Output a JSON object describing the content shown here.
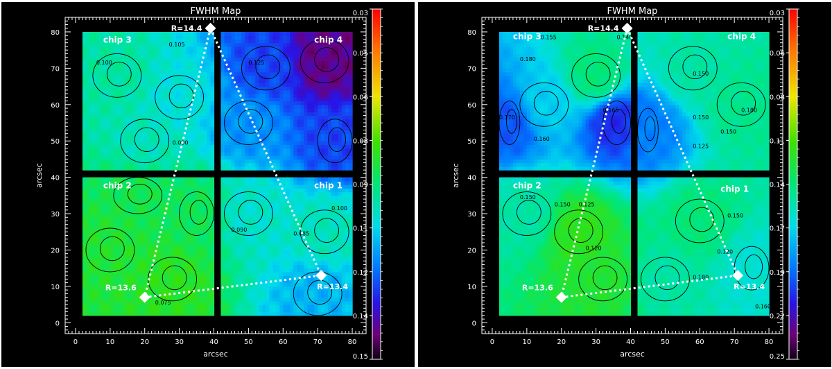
{
  "chart_data": [
    {
      "type": "heatmap",
      "title": "FWHM Map",
      "xlabel": "arcsec",
      "ylabel": "arcsec",
      "xlim": [
        -3,
        84
      ],
      "ylim": [
        -3,
        84
      ],
      "xticks": [
        0,
        10,
        20,
        30,
        40,
        50,
        60,
        70,
        80
      ],
      "yticks": [
        0,
        10,
        20,
        30,
        40,
        50,
        60,
        70,
        80
      ],
      "chips": [
        {
          "label": "chip 1",
          "x_range": [
            42,
            80
          ],
          "y_range": [
            2,
            40
          ],
          "label_pos": [
            69,
            37
          ]
        },
        {
          "label": "chip 2",
          "x_range": [
            2,
            40
          ],
          "y_range": [
            2,
            40
          ],
          "label_pos": [
            8,
            37
          ]
        },
        {
          "label": "chip 3",
          "x_range": [
            2,
            40
          ],
          "y_range": [
            42,
            80
          ],
          "label_pos": [
            8,
            77
          ]
        },
        {
          "label": "chip 4",
          "x_range": [
            42,
            80
          ],
          "y_range": [
            42,
            80
          ],
          "label_pos": [
            69,
            77
          ]
        }
      ],
      "field_centers": [
        {
          "x": 18,
          "y": 35,
          "value": 0.085
        },
        {
          "x": 10,
          "y": 20,
          "value": 0.082
        },
        {
          "x": 28,
          "y": 12,
          "value": 0.08
        },
        {
          "x": 35,
          "y": 30,
          "value": 0.086
        },
        {
          "x": 12,
          "y": 68,
          "value": 0.095
        },
        {
          "x": 30,
          "y": 62,
          "value": 0.102
        },
        {
          "x": 20,
          "y": 50,
          "value": 0.098
        },
        {
          "x": 55,
          "y": 70,
          "value": 0.125
        },
        {
          "x": 72,
          "y": 72,
          "value": 0.14
        },
        {
          "x": 50,
          "y": 55,
          "value": 0.115
        },
        {
          "x": 75,
          "y": 50,
          "value": 0.125
        },
        {
          "x": 50,
          "y": 30,
          "value": 0.1
        },
        {
          "x": 72,
          "y": 25,
          "value": 0.098
        },
        {
          "x": 70,
          "y": 8,
          "value": 0.11
        }
      ],
      "contour_labels": [
        {
          "text": "0.100",
          "x": 6,
          "y": 71
        },
        {
          "text": "0.105",
          "x": 27,
          "y": 76
        },
        {
          "text": "0.125",
          "x": 50,
          "y": 71
        },
        {
          "text": "0.090",
          "x": 28,
          "y": 49
        },
        {
          "text": "0.090",
          "x": 45,
          "y": 25
        },
        {
          "text": "0.085",
          "x": 63,
          "y": 24
        },
        {
          "text": "0.100",
          "x": 74,
          "y": 31
        },
        {
          "text": "0.075",
          "x": 23,
          "y": 5
        }
      ],
      "points": [
        {
          "label": "R=14.4",
          "x": 39,
          "y": 81,
          "label_side": "left"
        },
        {
          "label": "R=13.4",
          "x": 71,
          "y": 13,
          "label_side": "below-right"
        },
        {
          "label": "R=13.6",
          "x": 20,
          "y": 7,
          "label_side": "above-left"
        }
      ],
      "colorbar": {
        "min": 0.03,
        "max": 0.15,
        "reversed": true,
        "tick_labels": [
          "0.03",
          "0.05",
          "0.06",
          "0.08",
          "0.09",
          "0.11",
          "0.12",
          "0.14",
          "0.15"
        ]
      }
    },
    {
      "type": "heatmap",
      "title": "FWHM Map",
      "xlabel": "arcsec",
      "ylabel": "arcsec",
      "xlim": [
        -3,
        84
      ],
      "ylim": [
        -3,
        84
      ],
      "xticks": [
        0,
        10,
        20,
        30,
        40,
        50,
        60,
        70,
        80
      ],
      "yticks": [
        0,
        10,
        20,
        30,
        40,
        50,
        60,
        70,
        80
      ],
      "chips": [
        {
          "label": "chip 1",
          "x_range": [
            42,
            80
          ],
          "y_range": [
            2,
            40
          ],
          "label_pos": [
            66,
            36
          ]
        },
        {
          "label": "chip 2",
          "x_range": [
            2,
            40
          ],
          "y_range": [
            2,
            40
          ],
          "label_pos": [
            6,
            37
          ]
        },
        {
          "label": "chip 3",
          "x_range": [
            2,
            40
          ],
          "y_range": [
            42,
            80
          ],
          "label_pos": [
            6,
            78
          ]
        },
        {
          "label": "chip 4",
          "x_range": [
            42,
            80
          ],
          "y_range": [
            42,
            80
          ],
          "label_pos": [
            68,
            78
          ]
        }
      ],
      "field_centers": [
        {
          "x": 25,
          "y": 25,
          "value": 0.12
        },
        {
          "x": 10,
          "y": 30,
          "value": 0.15
        },
        {
          "x": 32,
          "y": 12,
          "value": 0.125
        },
        {
          "x": 15,
          "y": 60,
          "value": 0.17
        },
        {
          "x": 5,
          "y": 55,
          "value": 0.2
        },
        {
          "x": 30,
          "y": 68,
          "value": 0.14
        },
        {
          "x": 36,
          "y": 55,
          "value": 0.21
        },
        {
          "x": 58,
          "y": 70,
          "value": 0.15
        },
        {
          "x": 72,
          "y": 60,
          "value": 0.145
        },
        {
          "x": 45,
          "y": 53,
          "value": 0.19
        },
        {
          "x": 60,
          "y": 28,
          "value": 0.14
        },
        {
          "x": 75,
          "y": 15,
          "value": 0.16
        },
        {
          "x": 50,
          "y": 12,
          "value": 0.15
        }
      ],
      "contour_labels": [
        {
          "text": "0.155",
          "x": 14,
          "y": 78
        },
        {
          "text": "0.180",
          "x": 8,
          "y": 72
        },
        {
          "text": "0.170",
          "x": 2,
          "y": 56
        },
        {
          "text": "0.160",
          "x": 12,
          "y": 50
        },
        {
          "text": "0.165",
          "x": 32,
          "y": 58
        },
        {
          "text": "0.140",
          "x": 36,
          "y": 78
        },
        {
          "text": "0.150",
          "x": 58,
          "y": 68
        },
        {
          "text": "0.180",
          "x": 72,
          "y": 58
        },
        {
          "text": "0.150",
          "x": 58,
          "y": 56
        },
        {
          "text": "0.150",
          "x": 66,
          "y": 52
        },
        {
          "text": "0.125",
          "x": 58,
          "y": 48
        },
        {
          "text": "0.150",
          "x": 8,
          "y": 34
        },
        {
          "text": "0.150",
          "x": 18,
          "y": 32
        },
        {
          "text": "0.125",
          "x": 25,
          "y": 32
        },
        {
          "text": "0.120",
          "x": 27,
          "y": 20
        },
        {
          "text": "0.180",
          "x": 58,
          "y": 12
        },
        {
          "text": "0.120",
          "x": 65,
          "y": 19
        },
        {
          "text": "0.150",
          "x": 68,
          "y": 29
        },
        {
          "text": "0.160",
          "x": 76,
          "y": 4
        }
      ],
      "points": [
        {
          "label": "R=14.4",
          "x": 39,
          "y": 81,
          "label_side": "left"
        },
        {
          "label": "R=13.4",
          "x": 71,
          "y": 13,
          "label_side": "below-right"
        },
        {
          "label": "R=13.6",
          "x": 20,
          "y": 7,
          "label_side": "above-left"
        }
      ],
      "colorbar": {
        "min": 0.03,
        "max": 0.25,
        "reversed": true,
        "tick_labels": [
          "0.03",
          "0.06",
          "0.08",
          "0.11",
          "0.14",
          "0.17",
          "0.19",
          "0.22",
          "0.25"
        ]
      }
    }
  ]
}
